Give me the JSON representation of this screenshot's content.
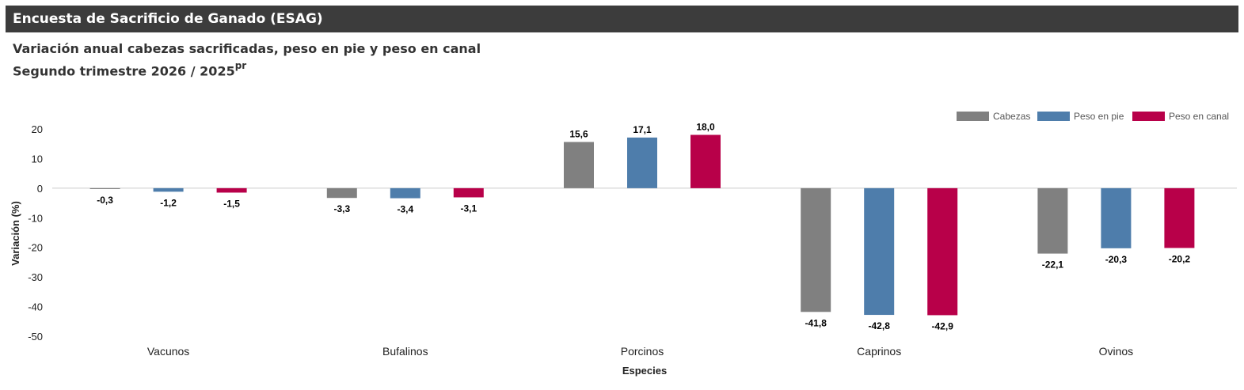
{
  "header": {
    "title": "Encuesta de Sacrificio de Ganado (ESAG)"
  },
  "subtitle": {
    "line1": "Variación anual cabezas sacrificadas, peso en pie y peso en canal",
    "line2": "Segundo trimestre 2026 / 2025",
    "line2_sup": "pr"
  },
  "chart_data": {
    "type": "bar",
    "title": "Variación anual cabezas sacrificadas, peso en pie y peso en canal",
    "xlabel": "Especies",
    "ylabel": "Variación (%)",
    "categories": [
      "Vacunos",
      "Bufalinos",
      "Porcinos",
      "Caprinos",
      "Ovinos"
    ],
    "series": [
      {
        "name": "Cabezas",
        "color": "#808080",
        "values": [
          -0.3,
          -3.3,
          15.6,
          -41.8,
          -22.1
        ],
        "labels": [
          "-0,3",
          "-3,3",
          "15,6",
          "-41,8",
          "-22,1"
        ]
      },
      {
        "name": "Peso en pie",
        "color": "#4e7dab",
        "values": [
          -1.2,
          -3.4,
          17.1,
          -42.8,
          -20.3
        ],
        "labels": [
          "-1,2",
          "-3,4",
          "17,1",
          "-42,8",
          "-20,3"
        ]
      },
      {
        "name": "Peso en canal",
        "color": "#b80049",
        "values": [
          -1.5,
          -3.1,
          18.0,
          -42.9,
          -20.2
        ],
        "labels": [
          "-1,5",
          "-3,1",
          "18,0",
          "-42,9",
          "-20,2"
        ]
      }
    ],
    "ylim": [
      -50,
      20
    ],
    "yticks": [
      20,
      10,
      0,
      -10,
      -20,
      -30,
      -40,
      -50
    ],
    "grid": false,
    "legend": "top-right"
  }
}
